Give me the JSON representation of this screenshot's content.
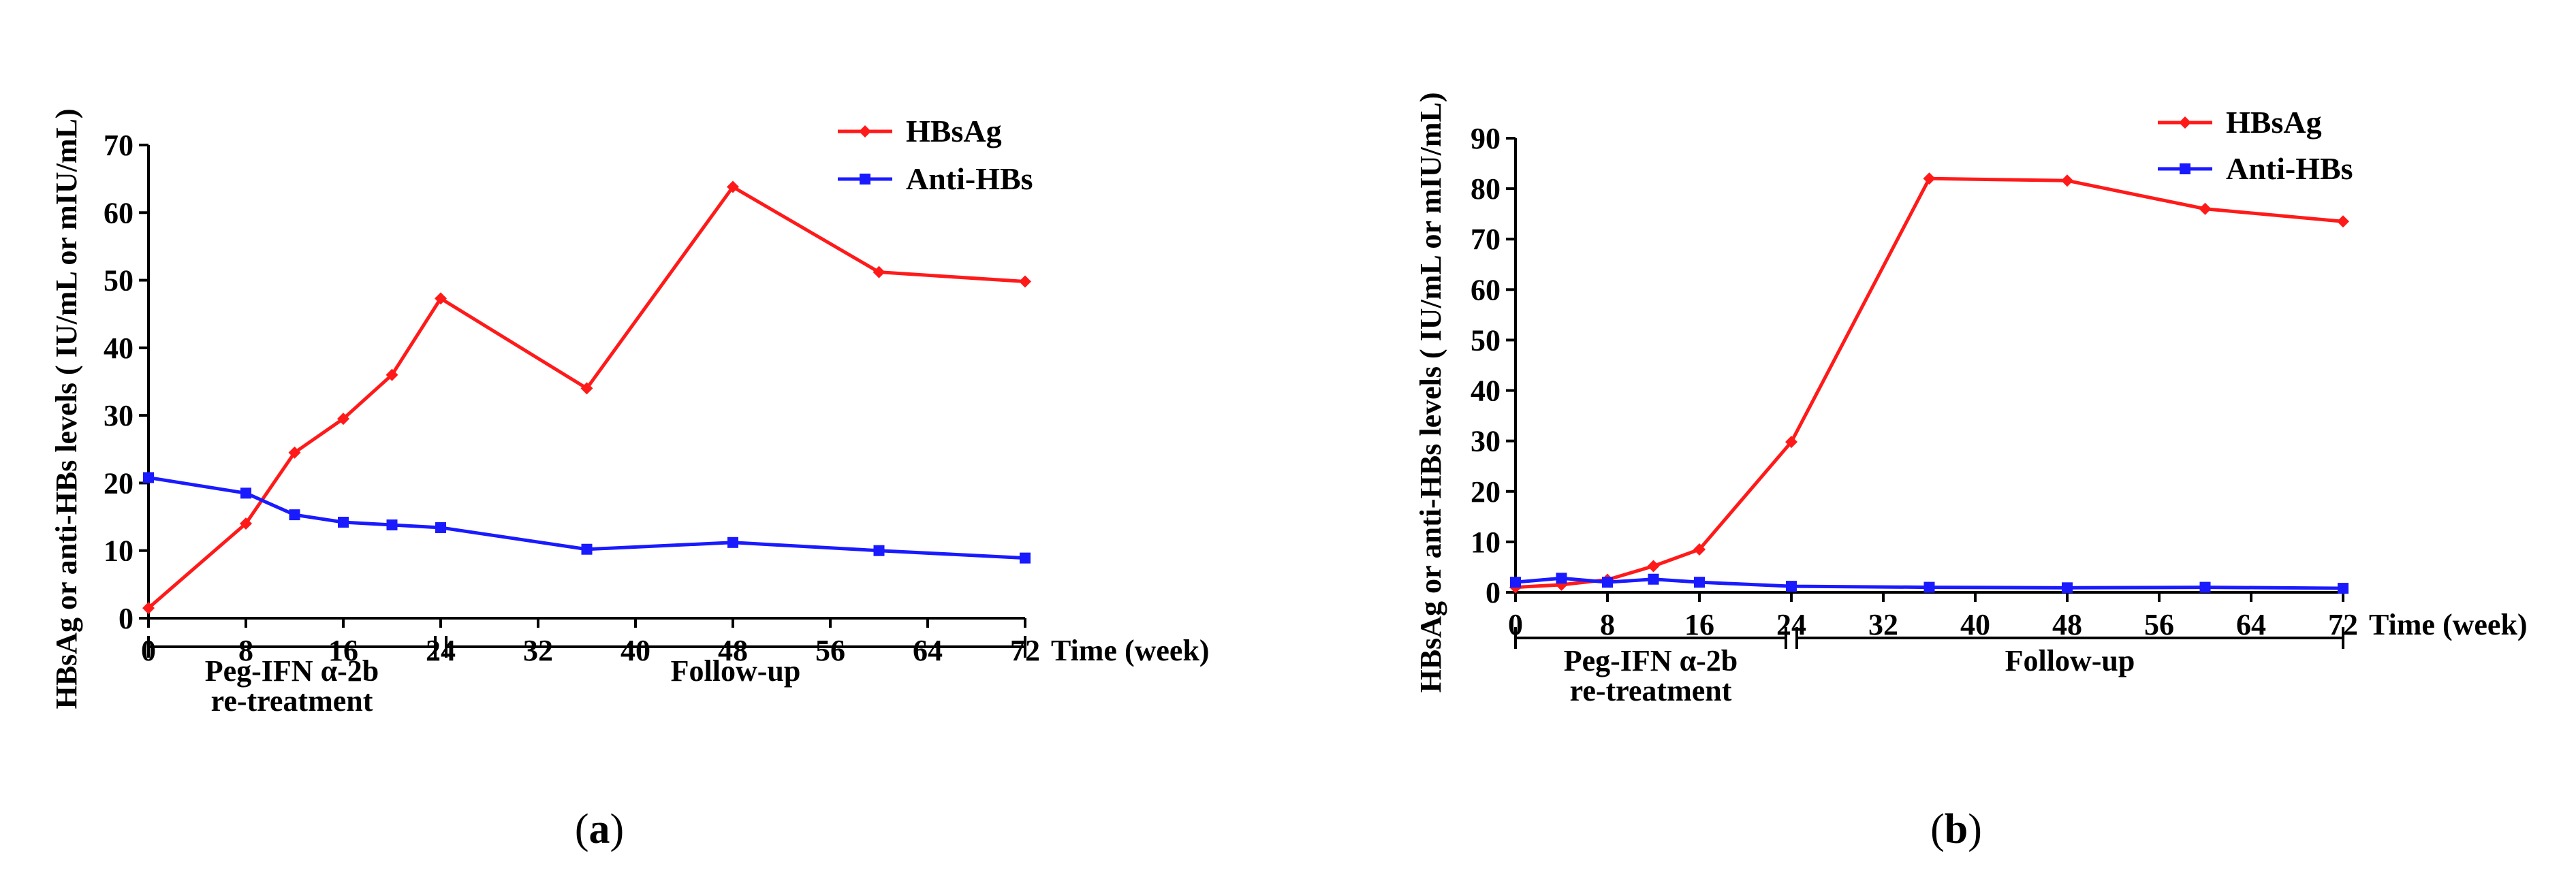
{
  "colors": {
    "hbsag": "#ff1a1a",
    "anti_hbs": "#1a1aff",
    "axis": "#000000"
  },
  "chart_data": [
    {
      "type": "line",
      "panel_label": "a",
      "xlabel": "Time (week)",
      "ylabel": "HBsAg or anti-HBs levels ( IU/mL or mIU/mL)",
      "xlim": [
        0,
        72
      ],
      "ylim": [
        0,
        70
      ],
      "xticks": [
        "0",
        "8",
        "16",
        "24",
        "32",
        "40",
        "48",
        "56",
        "64",
        "72"
      ],
      "yticks": [
        "0",
        "10",
        "20",
        "30",
        "40",
        "50",
        "60",
        "70"
      ],
      "legend_position": "top-right",
      "series": [
        {
          "name": "HBsAg",
          "color": "#ff1a1a",
          "marker": "diamond",
          "x": [
            0,
            8,
            12,
            16,
            20,
            24,
            36,
            48,
            60,
            72
          ],
          "y": [
            1.5,
            14,
            24.5,
            29.5,
            36,
            47.3,
            34,
            63.8,
            51.2,
            49.8
          ]
        },
        {
          "name": "Anti-HBs",
          "color": "#1a1aff",
          "marker": "square",
          "x": [
            0,
            8,
            12,
            16,
            20,
            24,
            36,
            48,
            60,
            72
          ],
          "y": [
            20.8,
            18.5,
            15.3,
            14.2,
            13.8,
            13.4,
            10.2,
            11.2,
            10,
            8.9
          ]
        }
      ],
      "phases": [
        {
          "label_lines": [
            "Peg-IFN α-2b",
            "re-treatment"
          ],
          "x_start": 0,
          "x_end": 24
        },
        {
          "label_lines": [
            "Follow-up"
          ],
          "x_start": 24,
          "x_end": 72
        }
      ]
    },
    {
      "type": "line",
      "panel_label": "b",
      "xlabel": "Time (week)",
      "ylabel": "HBsAg or anti-HBs levels ( IU/mL or mIU/mL)",
      "xlim": [
        0,
        72
      ],
      "ylim": [
        0,
        90
      ],
      "xticks": [
        "0",
        "8",
        "16",
        "24",
        "32",
        "40",
        "48",
        "56",
        "64",
        "72"
      ],
      "yticks": [
        "0",
        "10",
        "20",
        "30",
        "40",
        "50",
        "60",
        "70",
        "80",
        "90"
      ],
      "legend_position": "top-right",
      "series": [
        {
          "name": "HBsAg",
          "color": "#ff1a1a",
          "marker": "diamond",
          "x": [
            0,
            4,
            8,
            12,
            16,
            24,
            36,
            48,
            60,
            72
          ],
          "y": [
            1,
            1.5,
            2.5,
            5.2,
            8.5,
            29.8,
            82,
            81.6,
            76,
            73.5
          ]
        },
        {
          "name": "Anti-HBs",
          "color": "#1a1aff",
          "marker": "square",
          "x": [
            0,
            4,
            8,
            12,
            16,
            24,
            36,
            48,
            60,
            72
          ],
          "y": [
            2,
            2.8,
            2,
            2.6,
            2,
            1.2,
            1,
            0.9,
            1,
            0.8
          ]
        }
      ],
      "phases": [
        {
          "label_lines": [
            "Peg-IFN α-2b",
            "re-treatment"
          ],
          "x_start": 0,
          "x_end": 24
        },
        {
          "label_lines": [
            "Follow-up"
          ],
          "x_start": 24,
          "x_end": 72
        }
      ]
    }
  ]
}
